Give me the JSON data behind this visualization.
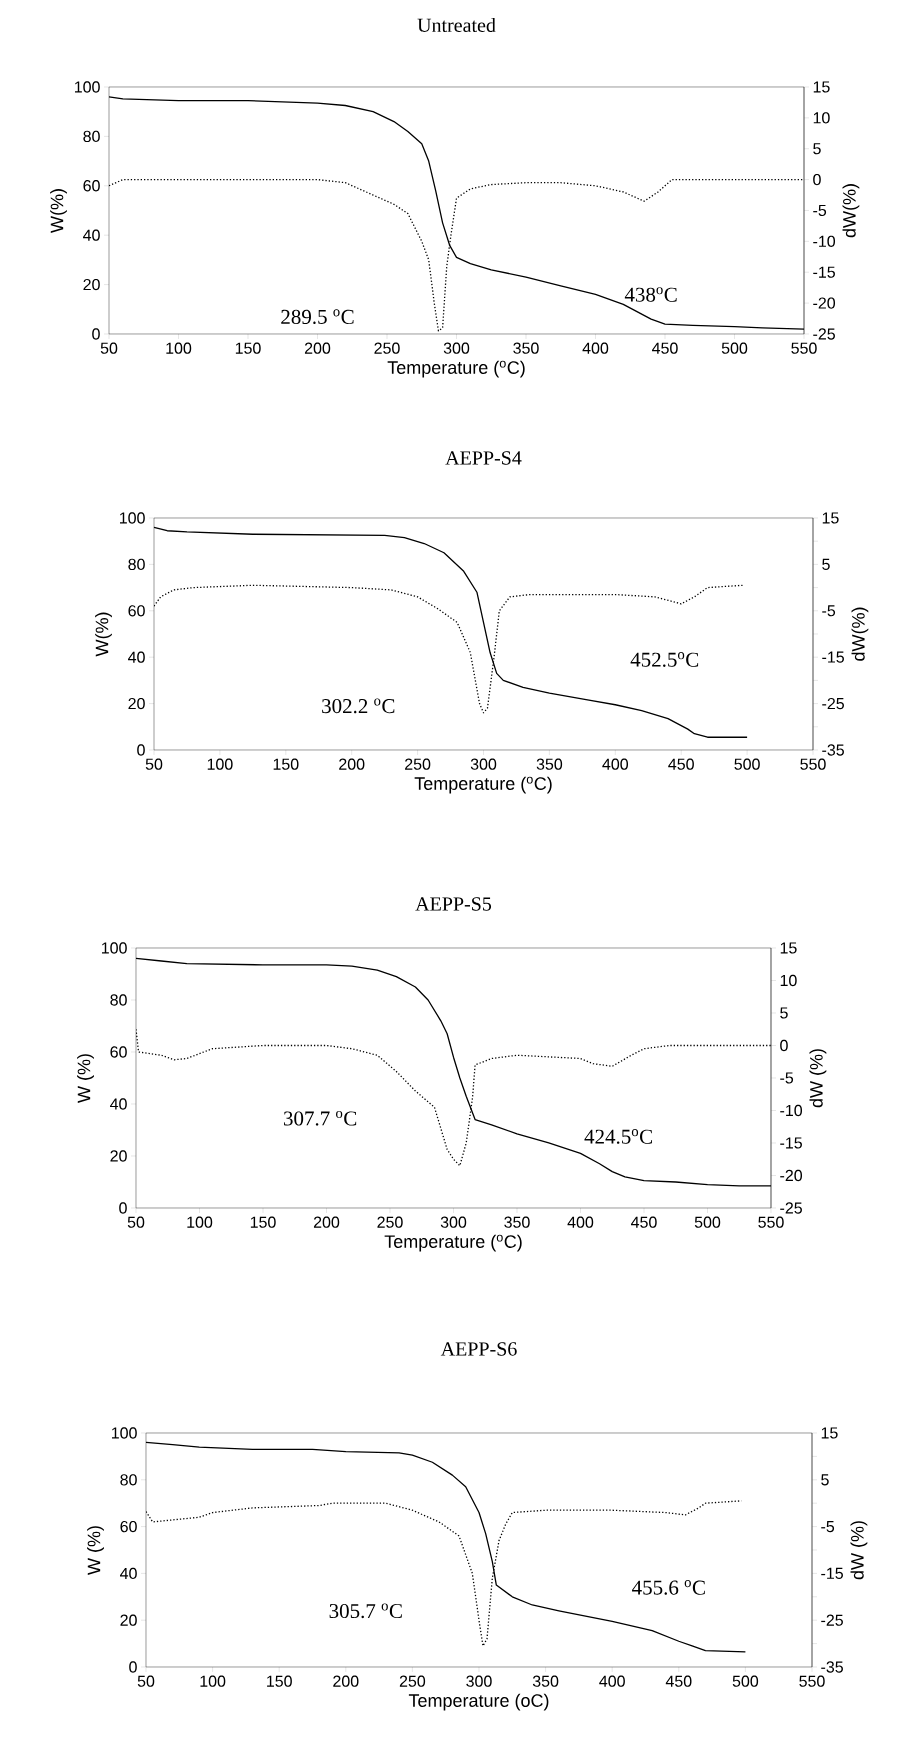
{
  "chart_data": [
    {
      "type": "line",
      "title": "Untreated",
      "xlabel": "Temperature ($^{o}$C)",
      "ylabel": "W(%)",
      "y2label": "dW(%)",
      "xlim": [
        50,
        550
      ],
      "xticks": [
        50,
        100,
        150,
        200,
        250,
        300,
        350,
        400,
        450,
        500,
        550
      ],
      "ylim": [
        0,
        100
      ],
      "yticks": [
        0,
        20,
        40,
        60,
        80,
        100
      ],
      "y2lim": [
        -25,
        15
      ],
      "y2ticks": [
        -25,
        -20,
        -15,
        -10,
        -5,
        0,
        5,
        10,
        15
      ],
      "annotations": [
        "289.5 $^{o}$C",
        "438$^{o}$C"
      ],
      "series": [
        {
          "color": "#000000",
          "line_style": "solid",
          "x": [
            50,
            60,
            100,
            150,
            200,
            220,
            240,
            255,
            265,
            275,
            280,
            285,
            290,
            295,
            300,
            310,
            325,
            350,
            375,
            400,
            420,
            440,
            450,
            470,
            500,
            520,
            550
          ],
          "values": [
            96,
            95.2,
            94.5,
            94.5,
            93.5,
            92.5,
            90,
            86,
            82,
            77,
            70,
            58,
            45,
            36,
            31,
            28.5,
            26,
            23,
            19.5,
            16,
            12,
            6,
            4,
            3.5,
            3,
            2.5,
            2
          ]
        },
        {
          "color": "#000000",
          "line_style": "dotted",
          "axis": "y2",
          "x": [
            50,
            60,
            80,
            200,
            220,
            240,
            255,
            265,
            275,
            280,
            284,
            287,
            290,
            293,
            296,
            300,
            310,
            325,
            350,
            375,
            400,
            420,
            435,
            445,
            455,
            470,
            550
          ],
          "values": [
            -1,
            0,
            0,
            0,
            -0.5,
            -2.5,
            -4,
            -5.5,
            -10,
            -13,
            -20,
            -24.5,
            -24,
            -14,
            -9,
            -3,
            -1.5,
            -0.8,
            -0.5,
            -0.5,
            -1,
            -2,
            -3.5,
            -2,
            0,
            0,
            0
          ]
        }
      ]
    },
    {
      "type": "line",
      "title": "AEPP-S4",
      "xlabel": "Temperature ($^{o}$C)",
      "ylabel": "W(%)",
      "y2label": "dW(%)",
      "xlim": [
        50,
        550
      ],
      "xticks": [
        50,
        100,
        150,
        200,
        250,
        300,
        350,
        400,
        450,
        500,
        550
      ],
      "ylim": [
        0,
        100
      ],
      "yticks": [
        0,
        20,
        40,
        60,
        80,
        100
      ],
      "y2lim": [
        -35,
        15
      ],
      "y2ticks": [
        -35,
        {
          "value": -30,
          "label": null
        },
        -25,
        {
          "value": -20,
          "label": null
        },
        -15,
        {
          "value": -10,
          "label": null
        },
        -5,
        {
          "value": 0,
          "label": null
        },
        5,
        {
          "value": 10,
          "label": null
        },
        15
      ],
      "annotations": [
        "302.2 $^{o}$C",
        "452.5$^{o}$C"
      ],
      "series": [
        {
          "color": "#000000",
          "line_style": "solid",
          "x": [
            50,
            60,
            75,
            125,
            225,
            240,
            255,
            270,
            285,
            295,
            300,
            305,
            310,
            315,
            330,
            350,
            380,
            400,
            420,
            440,
            455,
            460,
            470,
            500
          ],
          "values": [
            96,
            94.5,
            94,
            93,
            92.5,
            91.5,
            89,
            85,
            77,
            68,
            55,
            42,
            33,
            30,
            27,
            24.5,
            21.5,
            19.5,
            17,
            13.5,
            9,
            7,
            5.5,
            5.5
          ]
        },
        {
          "color": "#000000",
          "line_style": "dotted",
          "axis": "y2",
          "x": [
            50,
            55,
            65,
            80,
            125,
            200,
            230,
            250,
            265,
            280,
            290,
            297,
            300,
            303,
            308,
            312,
            320,
            335,
            400,
            430,
            450,
            460,
            470,
            497
          ],
          "values": [
            -4,
            -2,
            -0.5,
            0,
            0.5,
            0,
            -0.5,
            -2,
            -4.5,
            -7.5,
            -14,
            -25,
            -27,
            -26,
            -15,
            -5,
            -2,
            -1.5,
            -1.5,
            -2,
            -3.5,
            -2,
            0,
            0.5
          ]
        }
      ]
    },
    {
      "type": "line",
      "title": "AEPP-S5",
      "xlabel": "Temperature ($^{o}$C)",
      "ylabel": "W (%)",
      "y2label": "dW (%)",
      "xlim": [
        50,
        550
      ],
      "xticks": [
        50,
        100,
        150,
        200,
        250,
        300,
        350,
        400,
        450,
        500,
        550
      ],
      "ylim": [
        0,
        100
      ],
      "yticks": [
        0,
        20,
        40,
        60,
        80,
        100
      ],
      "y2lim": [
        -25,
        15
      ],
      "y2ticks": [
        -25,
        -20,
        -15,
        -10,
        -5,
        0,
        5,
        10,
        15
      ],
      "annotations": [
        "307.7 $^{o}$C",
        "424.5$^{o}$C"
      ],
      "series": [
        {
          "color": "#000000",
          "line_style": "solid",
          "x": [
            50,
            70,
            90,
            150,
            200,
            220,
            240,
            255,
            270,
            280,
            290,
            295,
            300,
            305,
            310,
            317,
            330,
            350,
            375,
            400,
            415,
            425,
            435,
            450,
            475,
            500,
            525,
            550
          ],
          "values": [
            96,
            95,
            94,
            93.5,
            93.5,
            93,
            91.5,
            89,
            85,
            80,
            72,
            67,
            58,
            50,
            43,
            34,
            32,
            28.5,
            25,
            21,
            17,
            14,
            12,
            10.5,
            10,
            9,
            8.5,
            8.5
          ]
        },
        {
          "color": "#000000",
          "line_style": "dotted",
          "axis": "y2",
          "x": [
            50,
            52,
            70,
            80,
            90,
            110,
            150,
            200,
            220,
            240,
            255,
            270,
            285,
            295,
            300,
            305,
            310,
            315,
            317,
            330,
            350,
            400,
            410,
            425,
            440,
            450,
            470,
            500,
            550
          ],
          "values": [
            2.5,
            -1,
            -1.5,
            -2.2,
            -2,
            -0.5,
            0,
            0,
            -0.5,
            -1.5,
            -4,
            -7,
            -9.5,
            -16,
            -17.5,
            -18.5,
            -15,
            -8,
            -3,
            -2,
            -1.5,
            -2,
            -2.8,
            -3.2,
            -1.5,
            -0.5,
            0,
            0,
            0
          ]
        }
      ]
    },
    {
      "type": "line",
      "title": "AEPP-S6",
      "xlabel": "Temperature (oC)",
      "ylabel": "W (%)",
      "y2label": "dW (%)",
      "xlim": [
        50,
        550
      ],
      "xticks": [
        50,
        100,
        150,
        200,
        250,
        300,
        350,
        400,
        450,
        500,
        550
      ],
      "ylim": [
        0,
        100
      ],
      "yticks": [
        0,
        20,
        40,
        60,
        80,
        100
      ],
      "y2lim": [
        -35,
        15
      ],
      "y2ticks": [
        -35,
        {
          "value": -30,
          "label": null
        },
        -25,
        {
          "value": -20,
          "label": null
        },
        -15,
        {
          "value": -10,
          "label": null
        },
        -5,
        {
          "value": 0,
          "label": null
        },
        5,
        {
          "value": 10,
          "label": null
        },
        15
      ],
      "annotations": [
        "305.7 $^{o}$C",
        "455.6 $^{o}$C"
      ],
      "series": [
        {
          "color": "#000000",
          "line_style": "solid",
          "x": [
            50,
            70,
            90,
            130,
            175,
            200,
            240,
            250,
            265,
            280,
            290,
            300,
            305,
            310,
            313,
            325,
            340,
            360,
            400,
            430,
            450,
            460,
            470,
            500
          ],
          "values": [
            96,
            95,
            94,
            93,
            93,
            92,
            91.5,
            90.5,
            87.5,
            82,
            77,
            66,
            57,
            45,
            35,
            30,
            26.5,
            24,
            19.5,
            15.5,
            11,
            9,
            7,
            6.5
          ]
        },
        {
          "color": "#000000",
          "line_style": "dotted",
          "axis": "y2",
          "x": [
            50,
            55,
            90,
            100,
            130,
            180,
            190,
            230,
            250,
            270,
            285,
            295,
            300,
            303,
            306,
            310,
            315,
            320,
            325,
            350,
            400,
            440,
            455,
            465,
            470,
            497
          ],
          "values": [
            -1.8,
            -4,
            -3,
            -2,
            -1,
            -0.5,
            0,
            0,
            -1.5,
            -4,
            -7,
            -15,
            -25,
            -30.5,
            -29,
            -16,
            -8,
            -4.5,
            -2,
            -1.5,
            -1.5,
            -2,
            -2.5,
            -1,
            0,
            0.5
          ]
        }
      ]
    }
  ]
}
